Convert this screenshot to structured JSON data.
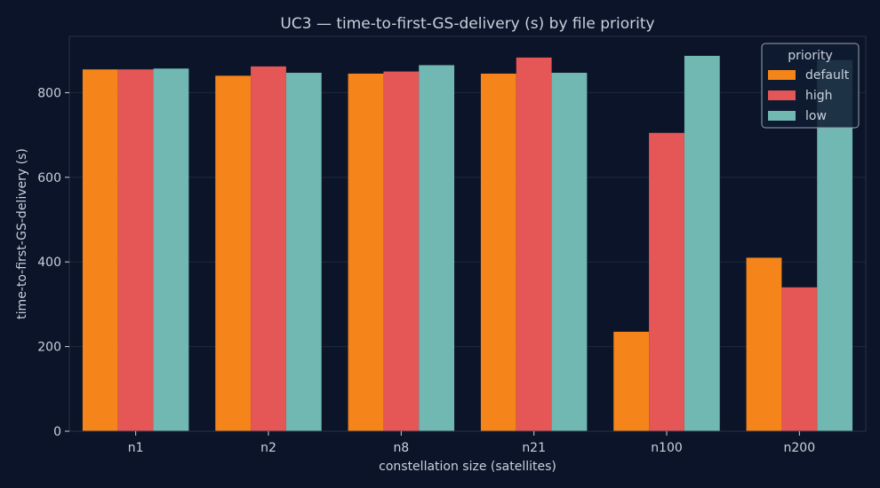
{
  "chart_data": {
    "type": "bar",
    "title": "UC3 — time-to-first-GS-delivery (s) by file priority",
    "xlabel": "constellation size (satellites)",
    "ylabel": "time-to-first-GS-delivery (s)",
    "categories": [
      "n1",
      "n2",
      "n8",
      "n21",
      "n100",
      "n200"
    ],
    "series": [
      {
        "name": "default",
        "color": "#f5841a",
        "values": [
          855,
          840,
          845,
          845,
          235,
          410
        ]
      },
      {
        "name": "high",
        "color": "#e55656",
        "values": [
          855,
          862,
          850,
          883,
          705,
          340
        ]
      },
      {
        "name": "low",
        "color": "#71b7b2",
        "values": [
          857,
          847,
          865,
          847,
          887,
          877
        ]
      }
    ],
    "ylim": [
      0,
      933
    ],
    "yticks": [
      0,
      200,
      400,
      600,
      800
    ],
    "grid": true,
    "legend": {
      "title": "priority",
      "position": "top-right"
    },
    "colors": {
      "background": "#0b1428",
      "plot_background": "#0b1428",
      "frame": "#2a3345",
      "text": "#c9d1dd",
      "grid": "#1c2a3d"
    }
  }
}
